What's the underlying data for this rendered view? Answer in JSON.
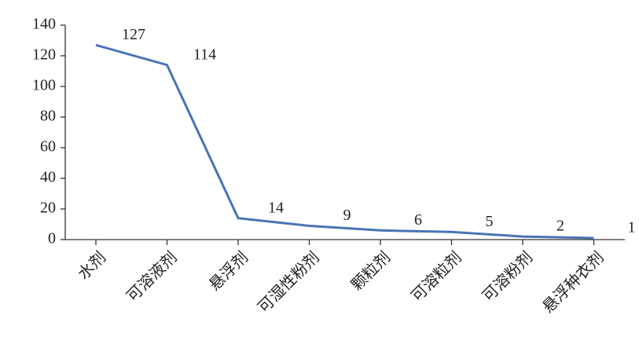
{
  "chart_data": {
    "type": "line",
    "categories": [
      "水剂",
      "可溶液剂",
      "悬浮剂",
      "可湿性粉剂",
      "颗粒剂",
      "可溶粒剂",
      "可溶粉剂",
      "悬浮种衣剂"
    ],
    "values": [
      127,
      114,
      14,
      9,
      6,
      5,
      2,
      1
    ],
    "color": "#4a74b4",
    "ylim": [
      0,
      140
    ],
    "yticks": [
      0,
      20,
      40,
      60,
      80,
      100,
      120,
      140
    ],
    "grid": false
  }
}
